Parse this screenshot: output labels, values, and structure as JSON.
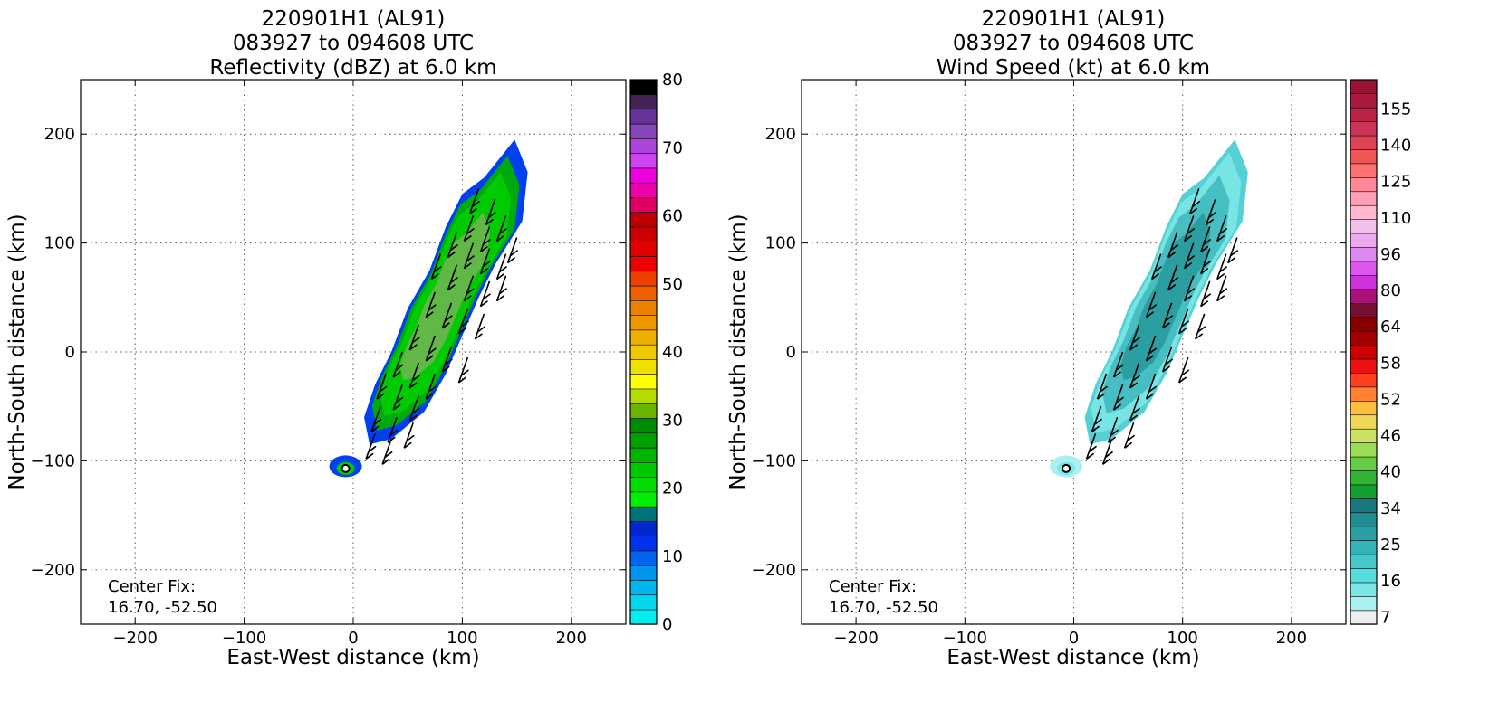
{
  "panels": [
    {
      "title_lines": [
        "220901H1 (AL91)",
        "083927 to 094608 UTC",
        "Reflectivity (dBZ) at 6.0 km"
      ],
      "xlabel": "East-West distance (km)",
      "ylabel": "North-South distance (km)",
      "center_fix_label": "Center Fix:",
      "center_fix_value": "16.70, -52.50",
      "colorbar_ticks": [
        "0",
        "10",
        "20",
        "30",
        "40",
        "50",
        "60",
        "70",
        "80"
      ]
    },
    {
      "title_lines": [
        "220901H1 (AL91)",
        "083927 to 094608 UTC",
        "Wind Speed (kt) at 6.0 km"
      ],
      "xlabel": "East-West distance (km)",
      "ylabel": "North-South distance (km)",
      "center_fix_label": "Center Fix:",
      "center_fix_value": "16.70, -52.50",
      "colorbar_ticks": [
        "7",
        "16",
        "25",
        "34",
        "40",
        "46",
        "52",
        "58",
        "64",
        "80",
        "96",
        "110",
        "125",
        "140",
        "155"
      ]
    }
  ],
  "chart_data": [
    {
      "type": "heatmap",
      "title": "220901H1 (AL91) 083927 to 094608 UTC Reflectivity (dBZ) at 6.0 km",
      "xlabel": "East-West distance (km)",
      "ylabel": "North-South distance (km)",
      "xlim": [
        -250,
        250
      ],
      "ylim": [
        -250,
        250
      ],
      "xticks": [
        -200,
        -100,
        0,
        100,
        200
      ],
      "yticks": [
        -200,
        -100,
        0,
        100,
        200
      ],
      "grid": true,
      "center_fix": [
        16.7,
        -52.5
      ],
      "center_marker_xy": [
        -7,
        -107
      ],
      "colorbar": {
        "label_values": [
          0,
          10,
          20,
          30,
          40,
          50,
          60,
          70,
          80
        ],
        "colors": [
          "#00eeee",
          "#00d6ee",
          "#00b4ee",
          "#0096ee",
          "#0064ee",
          "#0032ee",
          "#0028cc",
          "#00727a",
          "#00ee00",
          "#00dc00",
          "#00c800",
          "#00b400",
          "#00a000",
          "#008c00",
          "#6ab400",
          "#b4dc00",
          "#ffff00",
          "#eee000",
          "#eec800",
          "#eeb000",
          "#ee9800",
          "#ee8000",
          "#ee6000",
          "#ee4000",
          "#ee0000",
          "#e00000",
          "#cc0000",
          "#c00000",
          "#dd0060",
          "#ee00aa",
          "#ee00dd",
          "#cc44ee",
          "#aa44dd",
          "#8844bb",
          "#663399",
          "#442255",
          "#000000"
        ]
      },
      "echo_region_polygon": [
        [
          148,
          195
        ],
        [
          160,
          165
        ],
        [
          155,
          120
        ],
        [
          130,
          80
        ],
        [
          115,
          50
        ],
        [
          100,
          15
        ],
        [
          85,
          -20
        ],
        [
          65,
          -55
        ],
        [
          35,
          -80
        ],
        [
          15,
          -85
        ],
        [
          10,
          -60
        ],
        [
          20,
          -30
        ],
        [
          35,
          0
        ],
        [
          50,
          40
        ],
        [
          70,
          75
        ],
        [
          85,
          115
        ],
        [
          100,
          145
        ],
        [
          120,
          160
        ]
      ],
      "wind_barb_points": [
        [
          115,
          150
        ],
        [
          130,
          140
        ],
        [
          110,
          125
        ],
        [
          125,
          115
        ],
        [
          140,
          125
        ],
        [
          150,
          105
        ],
        [
          95,
          110
        ],
        [
          110,
          100
        ],
        [
          125,
          95
        ],
        [
          140,
          90
        ],
        [
          80,
          90
        ],
        [
          95,
          80
        ],
        [
          110,
          70
        ],
        [
          125,
          65
        ],
        [
          140,
          70
        ],
        [
          75,
          55
        ],
        [
          90,
          45
        ],
        [
          105,
          40
        ],
        [
          120,
          35
        ],
        [
          60,
          25
        ],
        [
          75,
          15
        ],
        [
          90,
          5
        ],
        [
          105,
          -5
        ],
        [
          45,
          0
        ],
        [
          60,
          -10
        ],
        [
          75,
          -20
        ],
        [
          30,
          -20
        ],
        [
          45,
          -30
        ],
        [
          60,
          -40
        ],
        [
          25,
          -50
        ],
        [
          40,
          -60
        ],
        [
          55,
          -65
        ],
        [
          20,
          -75
        ],
        [
          35,
          -80
        ]
      ]
    },
    {
      "type": "heatmap",
      "title": "220901H1 (AL91) 083927 to 094608 UTC Wind Speed (kt) at 6.0 km",
      "xlabel": "East-West distance (km)",
      "ylabel": "North-South distance (km)",
      "xlim": [
        -250,
        250
      ],
      "ylim": [
        -250,
        250
      ],
      "xticks": [
        -200,
        -100,
        0,
        100,
        200
      ],
      "yticks": [
        -200,
        -100,
        0,
        100,
        200
      ],
      "grid": true,
      "center_fix": [
        16.7,
        -52.5
      ],
      "center_marker_xy": [
        -7,
        -107
      ],
      "colorbar": {
        "label_values": [
          7,
          16,
          25,
          34,
          40,
          46,
          52,
          58,
          64,
          80,
          96,
          110,
          125,
          140,
          155
        ],
        "colors": [
          "#eeeeee",
          "#aaf0f0",
          "#7ae6e6",
          "#55dcdc",
          "#44c8cc",
          "#33b4b8",
          "#2aa0a4",
          "#228c90",
          "#1a787c",
          "#11a030",
          "#33b433",
          "#66cc44",
          "#99dd55",
          "#cce066",
          "#eed855",
          "#ffc040",
          "#ff8030",
          "#ff4020",
          "#ee1010",
          "#cc0000",
          "#a00000",
          "#880000",
          "#771133",
          "#aa1177",
          "#cc33dd",
          "#dd55ee",
          "#dd88ee",
          "#eeaaee",
          "#f0c0e8",
          "#ffb8d0",
          "#ffa0b4",
          "#ff8898",
          "#ff7070",
          "#ee5555",
          "#dd4455",
          "#cc3355",
          "#bb2244",
          "#aa1a40",
          "#991133"
        ]
      },
      "echo_region_polygon": [
        [
          148,
          195
        ],
        [
          160,
          165
        ],
        [
          155,
          120
        ],
        [
          130,
          80
        ],
        [
          115,
          50
        ],
        [
          100,
          15
        ],
        [
          85,
          -20
        ],
        [
          65,
          -55
        ],
        [
          35,
          -80
        ],
        [
          15,
          -85
        ],
        [
          10,
          -60
        ],
        [
          20,
          -30
        ],
        [
          35,
          0
        ],
        [
          50,
          40
        ],
        [
          70,
          75
        ],
        [
          85,
          115
        ],
        [
          100,
          145
        ],
        [
          120,
          160
        ]
      ],
      "wind_barb_points": [
        [
          115,
          150
        ],
        [
          130,
          140
        ],
        [
          110,
          125
        ],
        [
          125,
          115
        ],
        [
          140,
          125
        ],
        [
          150,
          105
        ],
        [
          95,
          110
        ],
        [
          110,
          100
        ],
        [
          125,
          95
        ],
        [
          140,
          90
        ],
        [
          80,
          90
        ],
        [
          95,
          80
        ],
        [
          110,
          70
        ],
        [
          125,
          65
        ],
        [
          140,
          70
        ],
        [
          75,
          55
        ],
        [
          90,
          45
        ],
        [
          105,
          40
        ],
        [
          120,
          35
        ],
        [
          60,
          25
        ],
        [
          75,
          15
        ],
        [
          90,
          5
        ],
        [
          105,
          -5
        ],
        [
          45,
          0
        ],
        [
          60,
          -10
        ],
        [
          75,
          -20
        ],
        [
          30,
          -20
        ],
        [
          45,
          -30
        ],
        [
          60,
          -40
        ],
        [
          25,
          -50
        ],
        [
          40,
          -60
        ],
        [
          55,
          -65
        ],
        [
          20,
          -75
        ],
        [
          35,
          -80
        ]
      ]
    }
  ]
}
